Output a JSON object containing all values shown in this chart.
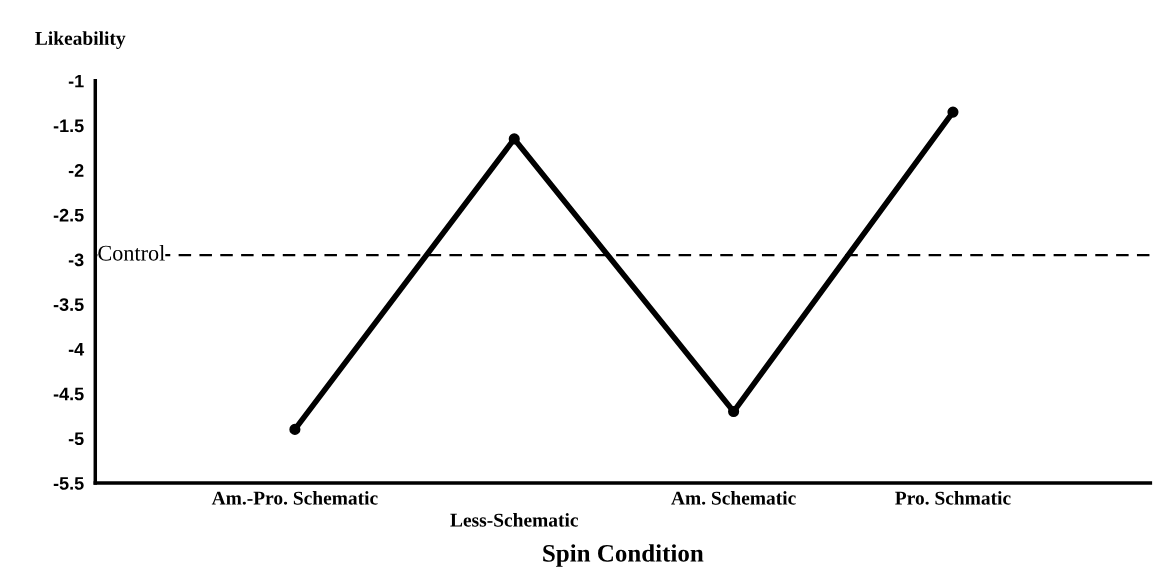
{
  "chart_data": {
    "type": "line",
    "ylabel": "Likeability",
    "xlabel": "Spin Condition",
    "categories": [
      "Am.-Pro. Schematic",
      "Less-Schematic",
      "Am. Schematic",
      "Pro. Schmatic"
    ],
    "series": [
      {
        "color": "#000000",
        "values": [
          -4.9,
          -1.65,
          -4.7,
          -1.35
        ]
      }
    ],
    "ylim": [
      -5.5,
      -1
    ],
    "yticks": [
      -5.5,
      -5,
      -4.5,
      -4,
      -3.5,
      -3,
      -2.5,
      -2,
      -1.5,
      -1
    ],
    "ref_lines": [
      {
        "axis": "y",
        "value": -2.95,
        "label": "Control",
        "color": "#000000",
        "line_style": "dashed"
      }
    ],
    "marker": "circle",
    "line_style": "solid",
    "grid": false,
    "legend": false
  }
}
